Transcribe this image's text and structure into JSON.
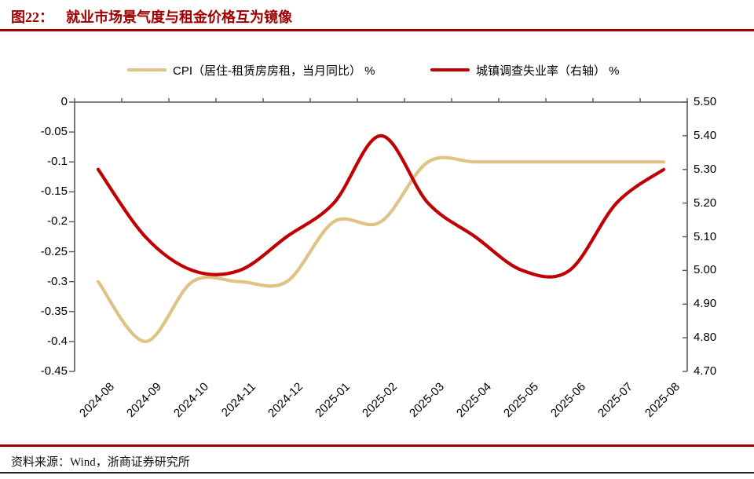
{
  "page": {
    "figure_label": "图22：",
    "title": "就业市场景气度与租金价格互为镜像",
    "source": "资料来源：Wind，浙商证券研究所"
  },
  "colors": {
    "title_red": "#A00000",
    "rule_red": "#A00000",
    "bottom_rule": "#1F1F1F",
    "axis_line": "#595959",
    "cpi_line": "#DFC286",
    "unemployment_line": "#C00000"
  },
  "chart_data": {
    "type": "line",
    "title": "就业市场景气度与租金价格互为镜像",
    "smoothed": true,
    "grid": false,
    "legend_position": "top",
    "categories": [
      "2024-08",
      "2024-09",
      "2024-10",
      "2024-11",
      "2024-12",
      "2025-01",
      "2025-02",
      "2025-03",
      "2025-04",
      "2025-05",
      "2025-06",
      "2025-07",
      "2025-08"
    ],
    "series": [
      {
        "name": "CPI（居住-租赁房房租，当月同比） %",
        "axis": "left",
        "color": "#DFC286",
        "values": [
          -0.3,
          -0.4,
          -0.3,
          -0.3,
          -0.3,
          -0.2,
          -0.2,
          -0.1,
          -0.1,
          -0.1,
          -0.1,
          -0.1,
          -0.1
        ]
      },
      {
        "name": "城镇调查失业率（右轴） %",
        "axis": "right",
        "color": "#C00000",
        "values": [
          5.3,
          5.1,
          5.0,
          5.0,
          5.1,
          5.2,
          5.4,
          5.2,
          5.1,
          5.0,
          5.0,
          5.2,
          5.3
        ]
      }
    ],
    "left_axis": {
      "min": -0.45,
      "max": 0,
      "tick_labels": [
        "0",
        "-0.05",
        "-0.1",
        "-0.15",
        "-0.2",
        "-0.25",
        "-0.3",
        "-0.35",
        "-0.4",
        "-0.45"
      ]
    },
    "right_axis": {
      "min": 4.7,
      "max": 5.5,
      "tick_labels": [
        "5.50",
        "5.40",
        "5.30",
        "5.20",
        "5.10",
        "5.00",
        "4.90",
        "4.80",
        "4.70"
      ]
    }
  }
}
